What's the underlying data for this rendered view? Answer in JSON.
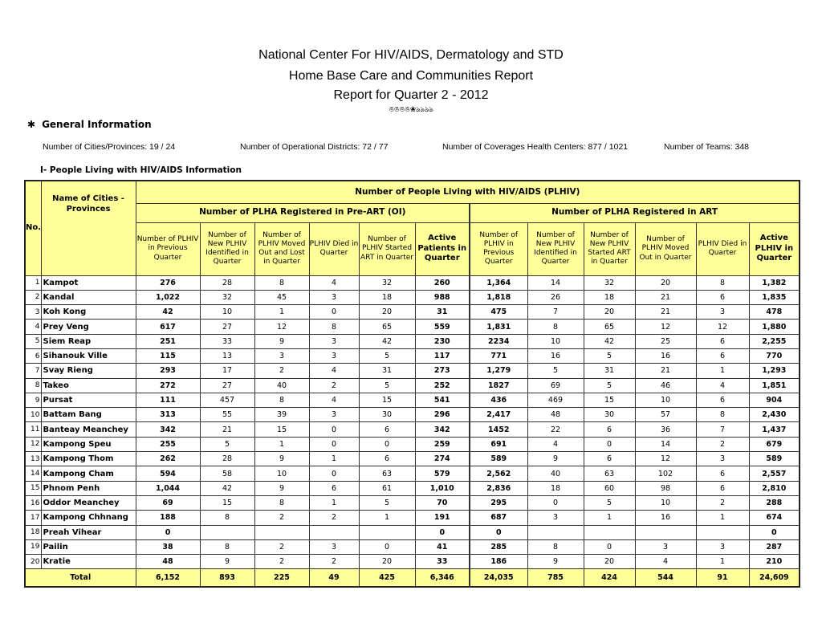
{
  "header": {
    "line1": "National Center For HIV/AIDS, Dermatology and STD",
    "line2": "Home Base Care and Communities Report",
    "line3": "Report  for Quarter 2 - 2012",
    "ornament": "ঙঙঙঙ❀ঌঌঌঌ"
  },
  "general": {
    "title": "General Information",
    "bullet_icon": "star-bullet",
    "cities": "Number of Cities/Provinces: 19 / 24",
    "districts": "Number of Operational Districts: 72 / 77",
    "health_centers": "Number of Coverages Health Centers: 877 / 1021",
    "teams": "Number of Teams: 348"
  },
  "section_title": "I- People Living with HIV/AIDS Information",
  "colors": {
    "header_fill": "#ffff99"
  },
  "table": {
    "no_header": "No.",
    "name_header": "Name of Cities - Provinces",
    "top_header": "Number of People Living with HIV/AIDS (PLHIV)",
    "preart_header": "Number of PLHA Registered in Pre-ART (OI)",
    "art_header": "Number of PLHA Registered in ART",
    "preart_columns": [
      "Number of PLHIV in Previous Quarter",
      "Number of New PLHIV Identified in Quarter",
      "Number of PLHIV Moved Out and Lost in Quarter",
      "PLHIV Died in Quarter",
      "Number of PLHIV Started ART in Quarter",
      "Active Patients in Quarter"
    ],
    "art_columns": [
      "Number of PLHIV in Previous Quarter",
      "Number of New PLHIV Identified in Quarter",
      "Number of New PLHIV Started ART in Quarter",
      "Number of PLHIV Moved Out in Quarter",
      "PLHIV Died in Quarter",
      "Active PLHIV in Quarter"
    ],
    "rows": [
      {
        "no": "1",
        "name": "Kampot",
        "v": [
          "276",
          "28",
          "8",
          "4",
          "32",
          "260",
          "1,364",
          "14",
          "32",
          "20",
          "8",
          "1,382"
        ]
      },
      {
        "no": "2",
        "name": "Kandal",
        "v": [
          "1,022",
          "32",
          "45",
          "3",
          "18",
          "988",
          "1,818",
          "26",
          "18",
          "21",
          "6",
          "1,835"
        ]
      },
      {
        "no": "3",
        "name": "Koh Kong",
        "v": [
          "42",
          "10",
          "1",
          "0",
          "20",
          "31",
          "475",
          "7",
          "20",
          "21",
          "3",
          "478"
        ]
      },
      {
        "no": "4",
        "name": "Prey Veng",
        "v": [
          "617",
          "27",
          "12",
          "8",
          "65",
          "559",
          "1,831",
          "8",
          "65",
          "12",
          "12",
          "1,880"
        ]
      },
      {
        "no": "5",
        "name": "Siem Reap",
        "v": [
          "251",
          "33",
          "9",
          "3",
          "42",
          "230",
          "2234",
          "10",
          "42",
          "25",
          "6",
          "2,255"
        ]
      },
      {
        "no": "6",
        "name": "Sihanouk Ville",
        "v": [
          "115",
          "13",
          "3",
          "3",
          "5",
          "117",
          "771",
          "16",
          "5",
          "16",
          "6",
          "770"
        ]
      },
      {
        "no": "7",
        "name": "Svay Rieng",
        "v": [
          "293",
          "17",
          "2",
          "4",
          "31",
          "273",
          "1,279",
          "5",
          "31",
          "21",
          "1",
          "1,293"
        ]
      },
      {
        "no": "8",
        "name": "Takeo",
        "v": [
          "272",
          "27",
          "40",
          "2",
          "5",
          "252",
          "1827",
          "69",
          "5",
          "46",
          "4",
          "1,851"
        ]
      },
      {
        "no": "9",
        "name": "Pursat",
        "v": [
          "111",
          "457",
          "8",
          "4",
          "15",
          "541",
          "436",
          "469",
          "15",
          "10",
          "6",
          "904"
        ]
      },
      {
        "no": "10",
        "name": "Battam Bang",
        "v": [
          "313",
          "55",
          "39",
          "3",
          "30",
          "296",
          "2,417",
          "48",
          "30",
          "57",
          "8",
          "2,430"
        ]
      },
      {
        "no": "11",
        "name": "Banteay Meanchey",
        "v": [
          "342",
          "21",
          "15",
          "0",
          "6",
          "342",
          "1452",
          "22",
          "6",
          "36",
          "7",
          "1,437"
        ]
      },
      {
        "no": "12",
        "name": "Kampong Speu",
        "v": [
          "255",
          "5",
          "1",
          "0",
          "0",
          "259",
          "691",
          "4",
          "0",
          "14",
          "2",
          "679"
        ]
      },
      {
        "no": "13",
        "name": "Kampong Thom",
        "v": [
          "262",
          "28",
          "9",
          "1",
          "6",
          "274",
          "589",
          "9",
          "6",
          "12",
          "3",
          "589"
        ]
      },
      {
        "no": "14",
        "name": "Kampong Cham",
        "v": [
          "594",
          "58",
          "10",
          "0",
          "63",
          "579",
          "2,562",
          "40",
          "63",
          "102",
          "6",
          "2,557"
        ]
      },
      {
        "no": "15",
        "name": "Phnom Penh",
        "v": [
          "1,044",
          "42",
          "9",
          "6",
          "61",
          "1,010",
          "2,836",
          "18",
          "60",
          "98",
          "6",
          "2,810"
        ]
      },
      {
        "no": "16",
        "name": "Oddor Meanchey",
        "v": [
          "69",
          "15",
          "8",
          "1",
          "5",
          "70",
          "295",
          "0",
          "5",
          "10",
          "2",
          "288"
        ]
      },
      {
        "no": "17",
        "name": "Kampong Chhnang",
        "v": [
          "188",
          "8",
          "2",
          "2",
          "1",
          "191",
          "687",
          "3",
          "1",
          "16",
          "1",
          "674"
        ]
      },
      {
        "no": "18",
        "name": "Preah Vihear",
        "v": [
          "0",
          "",
          "",
          "",
          "",
          "0",
          "0",
          "",
          "",
          "",
          "",
          "0"
        ]
      },
      {
        "no": "19",
        "name": "Pailin",
        "v": [
          "38",
          "8",
          "2",
          "3",
          "0",
          "41",
          "285",
          "8",
          "0",
          "3",
          "3",
          "287"
        ]
      },
      {
        "no": "20",
        "name": "Kratie",
        "v": [
          "48",
          "9",
          "2",
          "2",
          "20",
          "33",
          "186",
          "9",
          "20",
          "4",
          "1",
          "210"
        ]
      }
    ],
    "total": {
      "label": "Total",
      "v": [
        "6,152",
        "893",
        "225",
        "49",
        "425",
        "6,346",
        "24,035",
        "785",
        "424",
        "544",
        "91",
        "24,609"
      ]
    }
  }
}
